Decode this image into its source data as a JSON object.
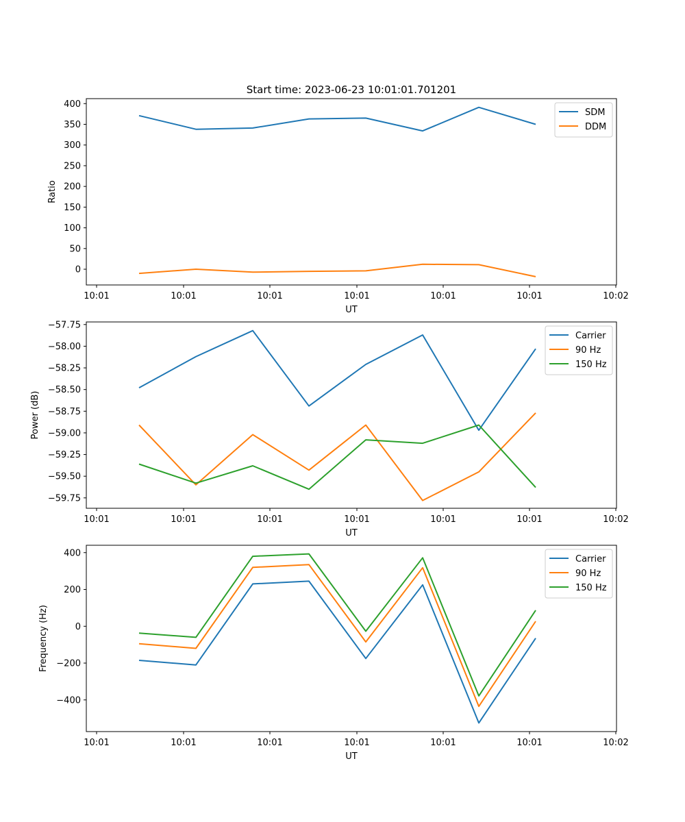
{
  "figure": {
    "title": "Start time: 2023-06-23 10:01:01.701201",
    "series_colors": {
      "blue": "#1f77b4",
      "orange": "#ff7f0e",
      "green": "#2ca02c"
    }
  },
  "chart_data": [
    {
      "type": "line",
      "title": "Start time: 2023-06-23 10:01:01.701201",
      "xlabel": "UT",
      "ylabel": "Ratio",
      "x_tick_labels": [
        "10:01",
        "10:01",
        "10:01",
        "10:01",
        "10:01",
        "10:01",
        "10:02"
      ],
      "y_ticks": [
        0,
        50,
        100,
        150,
        200,
        250,
        300,
        350,
        400
      ],
      "ylim": [
        -38,
        412
      ],
      "grid": false,
      "legend": "top-right",
      "series": [
        {
          "name": "SDM",
          "color": "#1f77b4",
          "values": [
            371,
            338,
            341,
            363,
            365,
            334,
            391,
            350
          ]
        },
        {
          "name": "DDM",
          "color": "#ff7f0e",
          "values": [
            -10,
            0,
            -7,
            -5,
            -4,
            12,
            11,
            -18
          ]
        }
      ]
    },
    {
      "type": "line",
      "title": "",
      "xlabel": "UT",
      "ylabel": "Power (dB)",
      "x_tick_labels": [
        "10:01",
        "10:01",
        "10:01",
        "10:01",
        "10:01",
        "10:01",
        "10:02"
      ],
      "y_ticks": [
        -59.75,
        -59.5,
        -59.25,
        -59.0,
        -58.75,
        -58.5,
        -58.25,
        -58.0,
        -57.75
      ],
      "y_tick_labels": [
        "−59.75",
        "−59.50",
        "−59.25",
        "−59.00",
        "−58.75",
        "−58.50",
        "−58.25",
        "−58.00",
        "−57.75"
      ],
      "ylim": [
        -59.87,
        -57.72
      ],
      "grid": false,
      "legend": "top-right",
      "series": [
        {
          "name": "Carrier",
          "color": "#1f77b4",
          "values": [
            -58.48,
            -58.12,
            -57.82,
            -58.69,
            -58.21,
            -57.87,
            -58.97,
            -58.03
          ]
        },
        {
          "name": "90 Hz",
          "color": "#ff7f0e",
          "values": [
            -58.91,
            -59.6,
            -59.02,
            -59.43,
            -58.91,
            -59.78,
            -59.45,
            -58.77
          ]
        },
        {
          "name": "150 Hz",
          "color": "#2ca02c",
          "values": [
            -59.36,
            -59.58,
            -59.38,
            -59.65,
            -59.08,
            -59.12,
            -58.91,
            -59.63
          ]
        }
      ]
    },
    {
      "type": "line",
      "title": "",
      "xlabel": "UT",
      "ylabel": "Frequency (Hz)",
      "x_tick_labels": [
        "10:01",
        "10:01",
        "10:01",
        "10:01",
        "10:01",
        "10:01",
        "10:02"
      ],
      "y_ticks": [
        -400,
        -200,
        0,
        200,
        400
      ],
      "y_tick_labels": [
        "−400",
        "−200",
        "0",
        "200",
        "400"
      ],
      "ylim": [
        -572,
        440
      ],
      "grid": false,
      "legend": "top-right",
      "series": [
        {
          "name": "Carrier",
          "color": "#1f77b4",
          "values": [
            -185,
            -210,
            230,
            245,
            -175,
            225,
            -525,
            -65
          ]
        },
        {
          "name": "90 Hz",
          "color": "#ff7f0e",
          "values": [
            -95,
            -120,
            320,
            335,
            -85,
            318,
            -435,
            27
          ]
        },
        {
          "name": "150 Hz",
          "color": "#2ca02c",
          "values": [
            -37,
            -60,
            380,
            393,
            -27,
            372,
            -378,
            87
          ]
        }
      ]
    }
  ]
}
